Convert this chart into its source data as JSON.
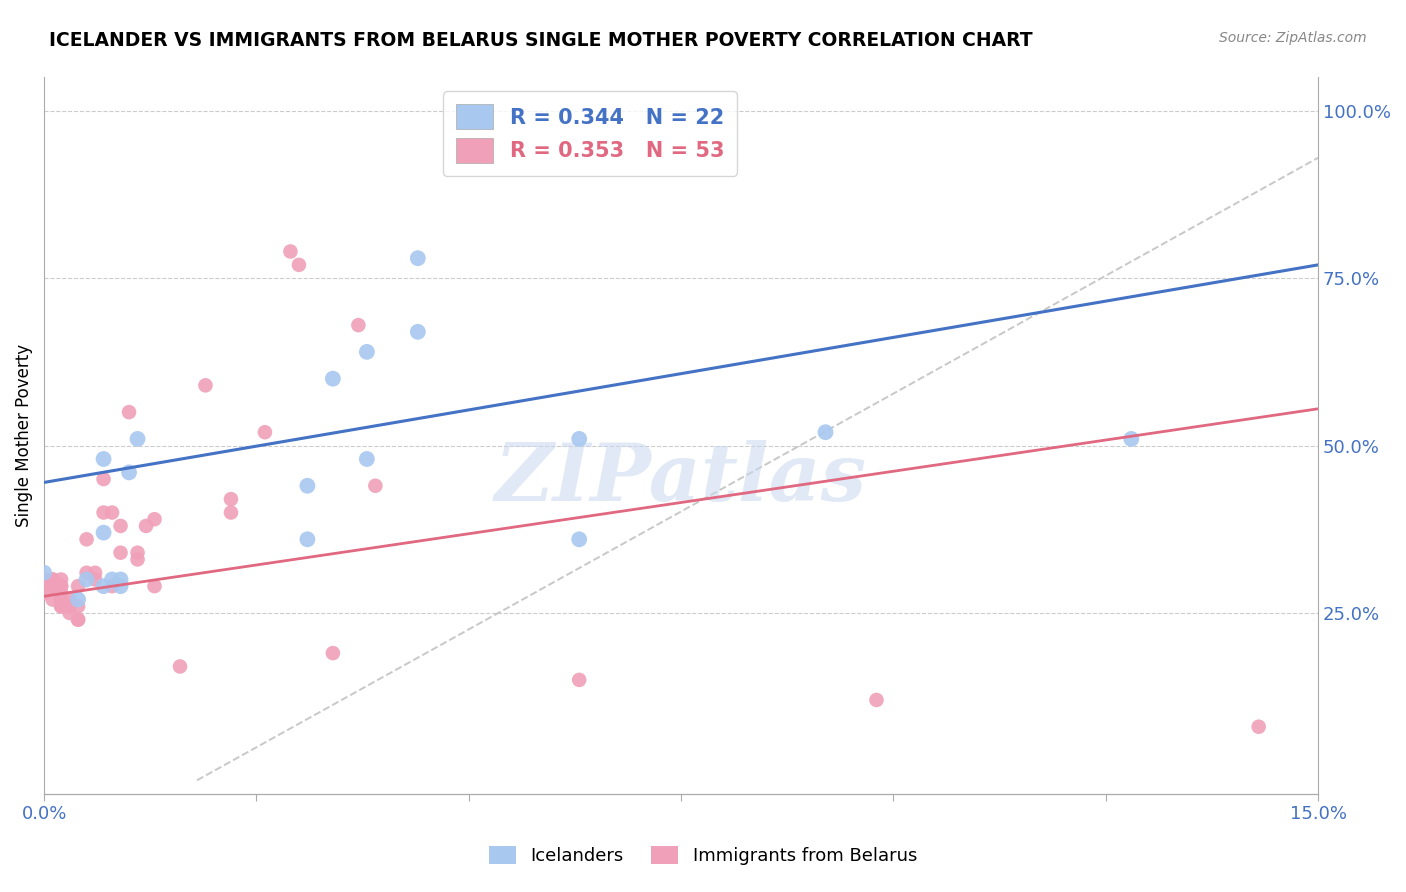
{
  "title": "ICELANDER VS IMMIGRANTS FROM BELARUS SINGLE MOTHER POVERTY CORRELATION CHART",
  "source": "Source: ZipAtlas.com",
  "ylabel": "Single Mother Poverty",
  "legend_label1": "Icelanders",
  "legend_label2": "Immigrants from Belarus",
  "R1": "0.344",
  "N1": "22",
  "R2": "0.353",
  "N2": "53",
  "watermark": "ZIPatlas",
  "blue_scatter_color": "#A8C8F0",
  "pink_scatter_color": "#F0A0B8",
  "blue_line_color": "#4472C4",
  "pink_line_color": "#E06880",
  "dashed_line_color": "#C8C8C8",
  "icelanders_x": [
    0.0,
    0.004,
    0.005,
    0.007,
    0.007,
    0.007,
    0.008,
    0.009,
    0.009,
    0.01,
    0.011,
    0.031,
    0.031,
    0.034,
    0.038,
    0.038,
    0.044,
    0.044,
    0.063,
    0.063,
    0.092,
    0.128
  ],
  "icelanders_y": [
    0.31,
    0.27,
    0.3,
    0.48,
    0.37,
    0.29,
    0.3,
    0.3,
    0.29,
    0.46,
    0.51,
    0.44,
    0.36,
    0.6,
    0.64,
    0.48,
    0.78,
    0.67,
    0.36,
    0.51,
    0.52,
    0.51
  ],
  "belarus_x": [
    0.0,
    0.0,
    0.0,
    0.0,
    0.001,
    0.001,
    0.001,
    0.001,
    0.001,
    0.001,
    0.002,
    0.002,
    0.002,
    0.002,
    0.002,
    0.002,
    0.002,
    0.003,
    0.003,
    0.003,
    0.004,
    0.004,
    0.004,
    0.004,
    0.005,
    0.005,
    0.006,
    0.006,
    0.007,
    0.007,
    0.008,
    0.008,
    0.009,
    0.009,
    0.01,
    0.011,
    0.011,
    0.012,
    0.013,
    0.013,
    0.016,
    0.019,
    0.022,
    0.022,
    0.026,
    0.029,
    0.03,
    0.034,
    0.037,
    0.039,
    0.063,
    0.098,
    0.143
  ],
  "belarus_y": [
    0.3,
    0.29,
    0.29,
    0.28,
    0.3,
    0.29,
    0.3,
    0.29,
    0.29,
    0.27,
    0.29,
    0.3,
    0.29,
    0.28,
    0.27,
    0.26,
    0.26,
    0.27,
    0.26,
    0.25,
    0.24,
    0.24,
    0.29,
    0.26,
    0.31,
    0.36,
    0.31,
    0.3,
    0.45,
    0.4,
    0.4,
    0.29,
    0.38,
    0.34,
    0.55,
    0.34,
    0.33,
    0.38,
    0.39,
    0.29,
    0.17,
    0.59,
    0.42,
    0.4,
    0.52,
    0.79,
    0.77,
    0.19,
    0.68,
    0.44,
    0.15,
    0.12,
    0.08
  ],
  "xlim": [
    0.0,
    0.15
  ],
  "ylim": [
    -0.02,
    1.05
  ],
  "plot_ylim": [
    0.0,
    1.0
  ],
  "figsize": [
    14.06,
    8.92
  ],
  "dpi": 100,
  "blue_trendline_y0": 0.445,
  "blue_trendline_y1": 0.77,
  "pink_trendline_y0": 0.275,
  "pink_trendline_y1": 0.555
}
